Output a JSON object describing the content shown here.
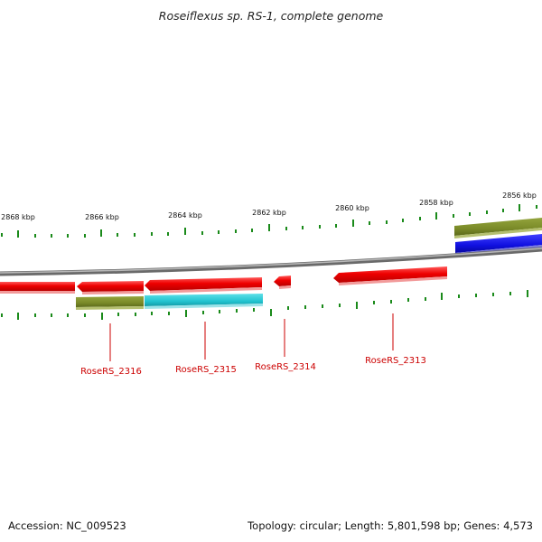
{
  "title": "Roseiflexus sp. RS-1, complete genome",
  "footer": {
    "accession": "Accession: NC_009523",
    "summary": "Topology: circular; Length: 5,801,598 bp; Genes: 4,573"
  },
  "scale_labels": [
    "2868 kbp",
    "2866 kbp",
    "2864 kbp",
    "2862 kbp",
    "2860 kbp",
    "2858 kbp",
    "2856 kbp"
  ],
  "gene_labels": [
    "RoseRS_2316",
    "RoseRS_2315",
    "RoseRS_2314",
    "RoseRS_2313"
  ],
  "colors": {
    "backbone": "#8c8c8c",
    "gene": "#ee0000",
    "gene_label": "#cc0000",
    "olive": "#7a8a28",
    "cyan": "#22c4d0",
    "blue": "#1010e0",
    "tick": "#1a8a1a",
    "scale_text": "#111111"
  }
}
